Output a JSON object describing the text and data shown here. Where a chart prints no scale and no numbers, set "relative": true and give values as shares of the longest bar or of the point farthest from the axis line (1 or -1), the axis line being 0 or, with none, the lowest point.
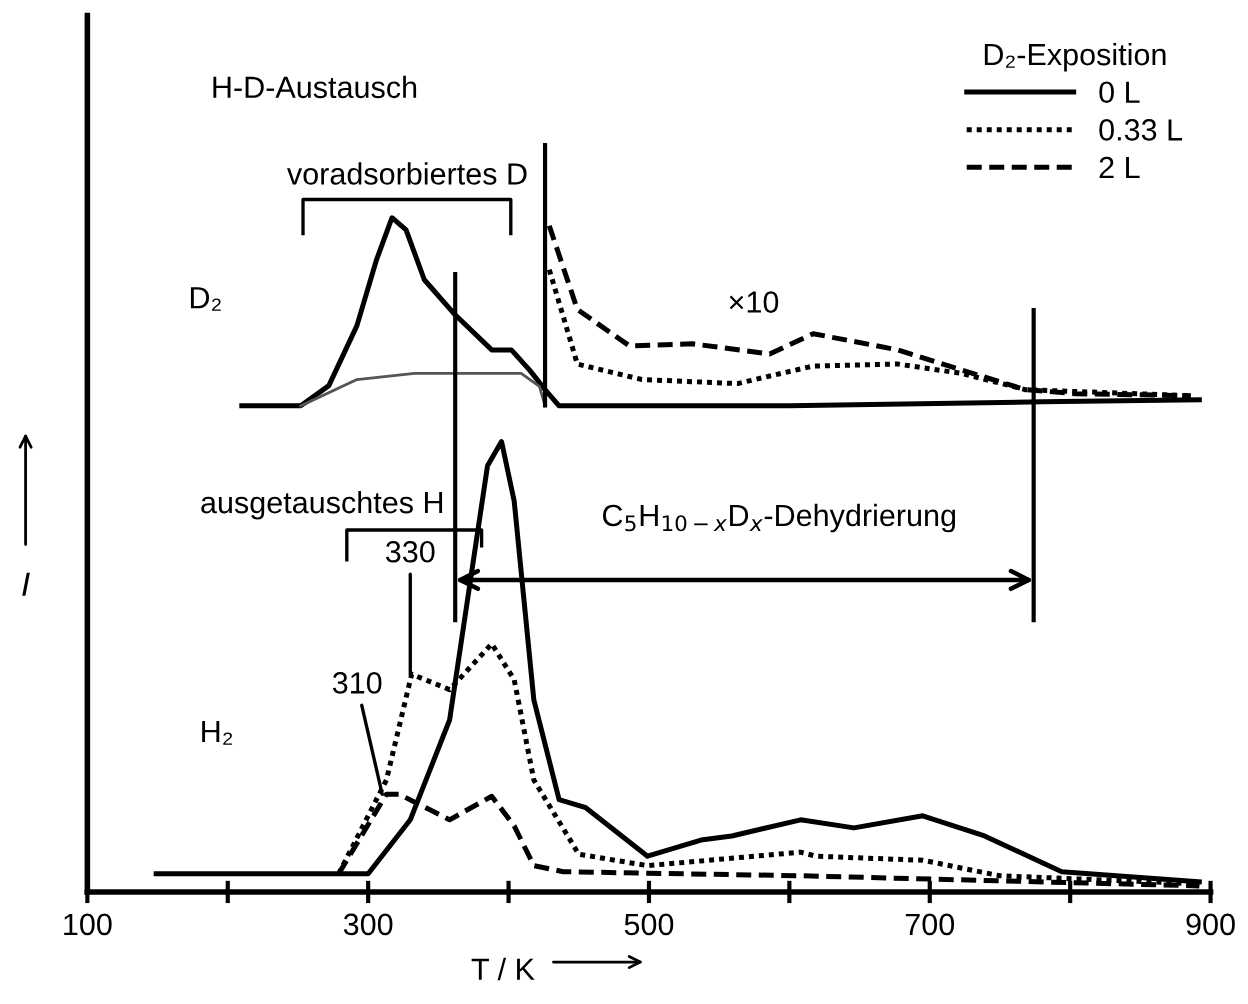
{
  "chart_data": {
    "type": "line",
    "relative": true,
    "xlabel": "T / K",
    "ylabel": "I",
    "legend_title": "D₂-Exposition",
    "legend": "top right",
    "grid": false,
    "marker": "none",
    "xlim": [
      100,
      900
    ],
    "xticks": [
      100,
      {
        "value": 200,
        "label": null
      },
      300,
      {
        "value": 400,
        "label": null
      },
      500,
      {
        "value": 600,
        "label": null
      },
      700,
      {
        "value": 800,
        "label": null
      },
      900
    ],
    "series": [
      {
        "name": "0 L",
        "color": "#000000",
        "line_style": "solid",
        "x": [
          149,
          300,
          330,
          358,
          385,
          395,
          404,
          418,
          436,
          455,
          499,
          537,
          559,
          608,
          646,
          695,
          739,
          794,
          892
        ],
        "values": [
          0.027,
          0.027,
          0.107,
          0.255,
          0.632,
          0.668,
          0.58,
          0.285,
          0.137,
          0.125,
          0.053,
          0.077,
          0.083,
          0.107,
          0.095,
          0.113,
          0.083,
          0.03,
          0.015
        ]
      },
      {
        "name": "0.33 L",
        "color": "#000000",
        "line_style": "dotted",
        "x": [
          279,
          313,
          331,
          358,
          388,
          404,
          418,
          450,
          499,
          608,
          619,
          695,
          750,
          892
        ],
        "values": [
          0.027,
          0.166,
          0.323,
          0.3,
          0.368,
          0.315,
          0.166,
          0.056,
          0.039,
          0.059,
          0.053,
          0.047,
          0.024,
          0.012
        ]
      },
      {
        "name": "2 L",
        "color": "#000000",
        "line_style": "dashed",
        "x": [
          279,
          313,
          322,
          358,
          388,
          404,
          418,
          439,
          608,
          892
        ],
        "values": [
          0.027,
          0.145,
          0.145,
          0.107,
          0.142,
          0.098,
          0.039,
          0.03,
          0.024,
          0.009
        ]
      },
      {
        "color": "#000000",
        "line_style": "solid",
        "x": [
          210,
          252,
          272,
          292,
          306,
          317,
          327,
          340,
          361,
          388,
          402,
          415,
          426,
          436,
          600,
          780,
          892
        ],
        "values": [
          0.721,
          0.721,
          0.751,
          0.84,
          0.938,
          1.0,
          0.982,
          0.908,
          0.858,
          0.804,
          0.804,
          0.774,
          0.745,
          0.721,
          0.721,
          0.727,
          0.73
        ]
      },
      {
        "color": "#555555",
        "line_style": "solid",
        "x": [
          252,
          292,
          333,
          409,
          422,
          426
        ],
        "values": [
          0.721,
          0.76,
          0.769,
          0.769,
          0.75,
          0.721
        ]
      },
      {
        "color": "#000000",
        "line_style": "dotted",
        "x": [
          429,
          449,
          495,
          563,
          617,
          677,
          723,
          768,
          886
        ],
        "values": [
          0.923,
          0.783,
          0.76,
          0.754,
          0.78,
          0.783,
          0.769,
          0.745,
          0.736
        ]
      },
      {
        "color": "#000000",
        "line_style": "dashed",
        "x": [
          429,
          449,
          486,
          531,
          586,
          617,
          677,
          723,
          768,
          804,
          886
        ],
        "values": [
          0.988,
          0.864,
          0.81,
          0.813,
          0.798,
          0.828,
          0.804,
          0.774,
          0.745,
          0.739,
          0.736
        ]
      }
    ],
    "ref_lines": [
      {
        "axis": "x",
        "value": 426,
        "color": "#000000"
      },
      {
        "axis": "x",
        "value": 362,
        "color": "#000000"
      },
      {
        "axis": "x",
        "value": 774,
        "color": "#000000"
      }
    ],
    "annotations": [
      "H-D-Austausch",
      "voradsorbiertes D",
      "D₂",
      "ausgetauschtes H",
      "C$_{5}$H$_{10−x}$D$_{x}$-Dehydrierung",
      "H₂",
      "×10",
      {
        "text": "310",
        "x": 310,
        "y": 0.145
      },
      {
        "text": "330",
        "x": 330,
        "y": 0.323
      }
    ]
  }
}
